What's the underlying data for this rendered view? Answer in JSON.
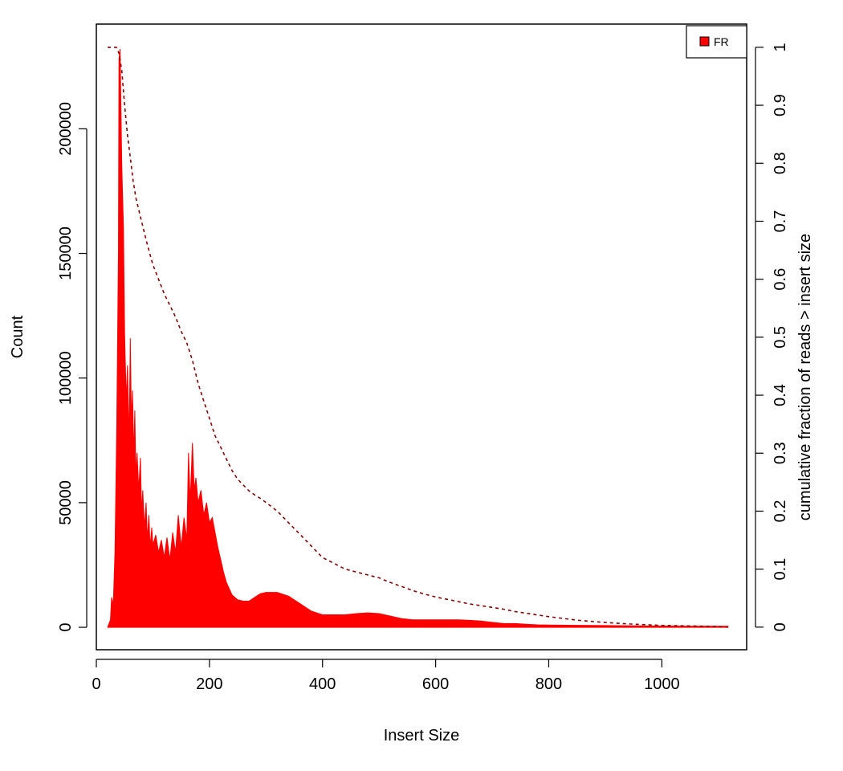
{
  "chart_data": {
    "type": "area",
    "xlabel": "Insert Size",
    "ylabel": "Count",
    "y2label": "cumulative fraction of reads > insert size",
    "xlim": [
      0,
      1150
    ],
    "ylim": [
      -9000,
      242000
    ],
    "y2lim": [
      -0.039,
      1.04
    ],
    "x_ticks": [
      0,
      200,
      400,
      600,
      800,
      1000
    ],
    "y_ticks": [
      0,
      50000,
      100000,
      150000,
      200000
    ],
    "y2_ticks": [
      0,
      0.1,
      0.2,
      0.3,
      0.4,
      0.5,
      0.6,
      0.7,
      0.8,
      0.9,
      1
    ],
    "grid": false,
    "legend": {
      "position": "top-right",
      "entries": [
        {
          "label": "FR",
          "color": "#ff0000"
        }
      ]
    },
    "colors": {
      "histogram": "#ff0000",
      "cumulative": "#8b0000"
    },
    "series": [
      {
        "name": "FR",
        "kind": "histogram",
        "x": [
          20,
          25,
          27,
          30,
          33,
          36,
          39,
          40,
          42,
          45,
          48,
          50,
          53,
          55,
          58,
          60,
          62,
          64,
          66,
          68,
          70,
          72,
          75,
          78,
          80,
          82,
          85,
          88,
          90,
          93,
          95,
          98,
          100,
          105,
          110,
          115,
          120,
          125,
          130,
          135,
          140,
          145,
          150,
          155,
          160,
          163,
          166,
          170,
          173,
          176,
          180,
          185,
          190,
          195,
          200,
          205,
          210,
          215,
          220,
          225,
          230,
          240,
          250,
          260,
          270,
          280,
          290,
          300,
          320,
          340,
          360,
          380,
          400,
          420,
          440,
          460,
          480,
          500,
          520,
          540,
          560,
          580,
          600,
          620,
          640,
          660,
          680,
          700,
          720,
          740,
          760,
          780,
          800,
          850,
          900,
          950,
          1000,
          1050,
          1100,
          1117
        ],
        "y": [
          0,
          3000,
          12000,
          9000,
          30000,
          80000,
          150000,
          228000,
          232000,
          185000,
          160000,
          118000,
          90000,
          105000,
          75000,
          116000,
          82000,
          95000,
          68000,
          87000,
          60000,
          70000,
          55000,
          68000,
          46000,
          55000,
          40000,
          50000,
          35000,
          45000,
          32000,
          40000,
          33000,
          37000,
          30000,
          35000,
          28000,
          36000,
          27000,
          38000,
          30000,
          45000,
          32000,
          44000,
          35000,
          70000,
          50000,
          74000,
          55000,
          60000,
          50000,
          55000,
          45000,
          50000,
          42000,
          44000,
          38000,
          32000,
          27000,
          22000,
          18000,
          13000,
          11000,
          10500,
          10500,
          12000,
          13500,
          14000,
          14000,
          12500,
          9500,
          6500,
          5000,
          5000,
          5000,
          5500,
          5800,
          5500,
          4500,
          3500,
          3000,
          3000,
          3000,
          3000,
          3000,
          2800,
          2500,
          2000,
          1500,
          1500,
          1200,
          1000,
          900,
          800,
          700,
          600,
          500,
          400,
          400,
          400
        ]
      },
      {
        "name": "cumulative fraction",
        "kind": "cumulative-dashed",
        "x": [
          20,
          25,
          30,
          35,
          40,
          45,
          50,
          55,
          60,
          65,
          70,
          80,
          90,
          100,
          110,
          120,
          130,
          140,
          150,
          160,
          170,
          180,
          190,
          200,
          210,
          220,
          230,
          240,
          250,
          260,
          270,
          280,
          290,
          300,
          320,
          340,
          360,
          380,
          400,
          420,
          440,
          460,
          480,
          500,
          520,
          540,
          560,
          580,
          600,
          620,
          640,
          660,
          680,
          700,
          720,
          740,
          760,
          780,
          800,
          850,
          900,
          950,
          1000,
          1050,
          1100,
          1117
        ],
        "y": [
          1,
          1,
          1,
          1,
          0.99,
          0.96,
          0.9,
          0.85,
          0.81,
          0.77,
          0.74,
          0.7,
          0.66,
          0.625,
          0.6,
          0.575,
          0.555,
          0.535,
          0.51,
          0.49,
          0.46,
          0.42,
          0.39,
          0.36,
          0.33,
          0.31,
          0.29,
          0.27,
          0.255,
          0.245,
          0.235,
          0.228,
          0.222,
          0.215,
          0.2,
          0.18,
          0.16,
          0.14,
          0.12,
          0.11,
          0.1,
          0.095,
          0.09,
          0.085,
          0.077,
          0.07,
          0.063,
          0.057,
          0.052,
          0.048,
          0.044,
          0.04,
          0.037,
          0.034,
          0.031,
          0.027,
          0.024,
          0.021,
          0.018,
          0.012,
          0.008,
          0.005,
          0.003,
          0.002,
          0.001,
          0
        ]
      }
    ]
  }
}
